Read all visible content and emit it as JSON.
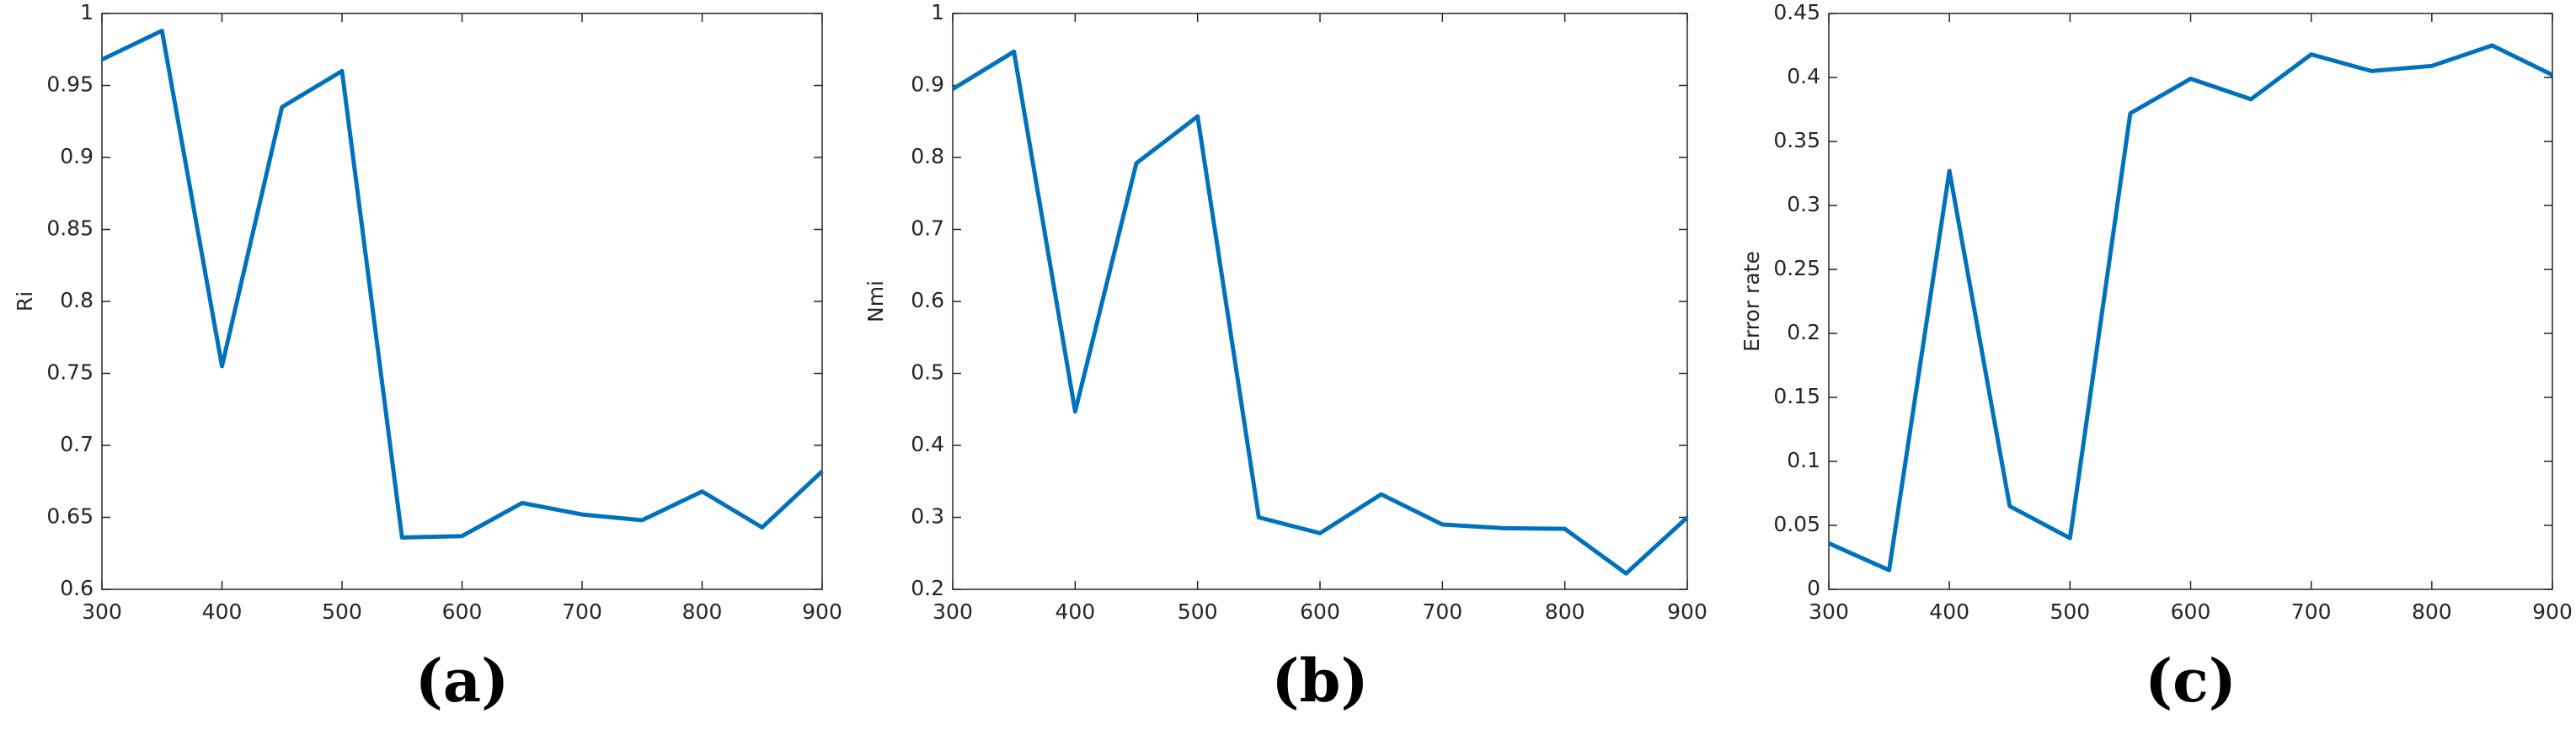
{
  "chart_data": [
    {
      "type": "line",
      "caption": "(a)",
      "ylabel": "Ri",
      "x": [
        300,
        350,
        400,
        450,
        500,
        550,
        600,
        650,
        700,
        750,
        800,
        850,
        900
      ],
      "series": [
        {
          "color": "#0072bd",
          "values": [
            0.968,
            0.988,
            0.755,
            0.935,
            0.96,
            0.636,
            0.637,
            0.66,
            0.652,
            0.648,
            0.668,
            0.643,
            0.682
          ]
        }
      ],
      "xlim": [
        300,
        900
      ],
      "xticks": [
        300,
        400,
        500,
        600,
        700,
        800,
        900
      ],
      "ylim": [
        0.6,
        1
      ],
      "yticks": [
        0.6,
        0.65,
        0.7,
        0.75,
        0.8,
        0.85,
        0.9,
        0.95,
        1
      ]
    },
    {
      "type": "line",
      "caption": "(b)",
      "ylabel": "Nmi",
      "x": [
        300,
        350,
        400,
        450,
        500,
        550,
        600,
        650,
        700,
        750,
        800,
        850,
        900
      ],
      "series": [
        {
          "color": "#0072bd",
          "values": [
            0.895,
            0.947,
            0.447,
            0.792,
            0.857,
            0.3,
            0.278,
            0.332,
            0.29,
            0.285,
            0.284,
            0.222,
            0.3
          ]
        }
      ],
      "xlim": [
        300,
        900
      ],
      "xticks": [
        300,
        400,
        500,
        600,
        700,
        800,
        900
      ],
      "ylim": [
        0.2,
        1
      ],
      "yticks": [
        0.2,
        0.3,
        0.4,
        0.5,
        0.6,
        0.7,
        0.8,
        0.9,
        1
      ]
    },
    {
      "type": "line",
      "caption": "(c)",
      "ylabel": "Error rate",
      "x": [
        300,
        350,
        400,
        450,
        500,
        550,
        600,
        650,
        700,
        750,
        800,
        850,
        900
      ],
      "series": [
        {
          "color": "#0072bd",
          "values": [
            0.036,
            0.015,
            0.327,
            0.065,
            0.04,
            0.372,
            0.399,
            0.383,
            0.418,
            0.405,
            0.409,
            0.425,
            0.402
          ]
        }
      ],
      "xlim": [
        300,
        900
      ],
      "xticks": [
        300,
        400,
        500,
        600,
        700,
        800,
        900
      ],
      "ylim": [
        0,
        0.45
      ],
      "yticks": [
        0,
        0.05,
        0.1,
        0.15,
        0.2,
        0.25,
        0.3,
        0.35,
        0.4,
        0.45
      ]
    }
  ]
}
